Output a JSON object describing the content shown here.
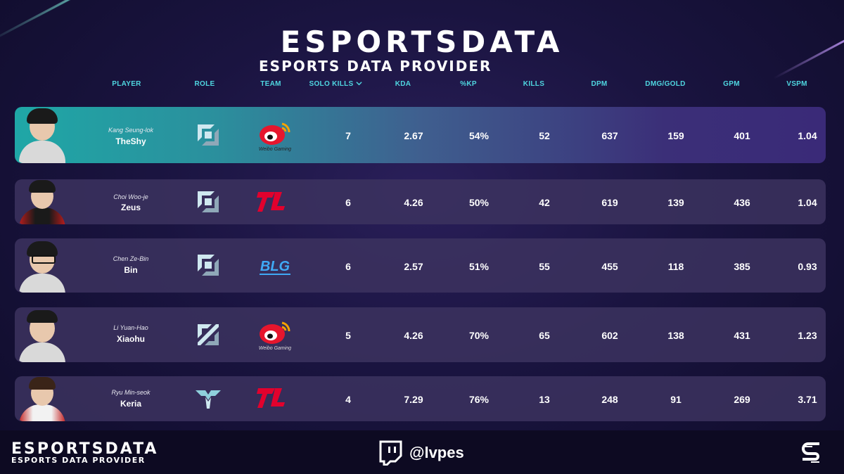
{
  "brand": {
    "logo_text": "ESPORTSDATA",
    "subtitle": "ESPORTS DATA PROVIDER"
  },
  "table": {
    "columns": [
      "PLAYER",
      "ROLE",
      "TEAM",
      "SOLO KILLS",
      "KDA",
      "%KP",
      "KILLS",
      "DPM",
      "DMG/GOLD",
      "GPM",
      "VSPM"
    ],
    "sort_indicator": "chevron-down-icon",
    "rows": [
      {
        "real_name": "Kang Seung-lok",
        "nick": "TheShy",
        "role": "top-role-icon",
        "team": "weibo-gaming-logo",
        "solo_kills": "7",
        "kda": "2.67",
        "kp": "54%",
        "kills": "52",
        "dpm": "637",
        "dmg_gold": "159",
        "gpm": "401",
        "vspm": "1.04"
      },
      {
        "real_name": "Choi Woo-je",
        "nick": "Zeus",
        "role": "top-role-icon",
        "team": "t1-logo",
        "solo_kills": "6",
        "kda": "4.26",
        "kp": "50%",
        "kills": "42",
        "dpm": "619",
        "dmg_gold": "139",
        "gpm": "436",
        "vspm": "1.04"
      },
      {
        "real_name": "Chen Ze-Bin",
        "nick": "Bin",
        "role": "top-role-icon",
        "team": "blg-logo",
        "solo_kills": "6",
        "kda": "2.57",
        "kp": "51%",
        "kills": "55",
        "dpm": "455",
        "dmg_gold": "118",
        "gpm": "385",
        "vspm": "0.93"
      },
      {
        "real_name": "Li Yuan-Hao",
        "nick": "Xiaohu",
        "role": "mid-role-icon",
        "team": "weibo-gaming-logo",
        "solo_kills": "5",
        "kda": "4.26",
        "kp": "70%",
        "kills": "65",
        "dpm": "602",
        "dmg_gold": "138",
        "gpm": "431",
        "vspm": "1.23"
      },
      {
        "real_name": "Ryu Min-seok",
        "nick": "Keria",
        "role": "support-role-icon",
        "team": "t1-logo",
        "solo_kills": "4",
        "kda": "7.29",
        "kp": "76%",
        "kills": "13",
        "dpm": "248",
        "dmg_gold": "91",
        "gpm": "269",
        "vspm": "3.71"
      }
    ]
  },
  "footer": {
    "logo_text": "ESPORTSDATA",
    "subtitle": "ESPORTS DATA PROVIDER",
    "handle": "@lvpes"
  },
  "colors": {
    "header_text": "#4fd6e0",
    "highlight_row": "#1fa7a6",
    "row_bg": "#3c325f",
    "weibo_red": "#e6162d",
    "t1_red": "#e2012d",
    "blg_blue": "#3fa9f5"
  }
}
